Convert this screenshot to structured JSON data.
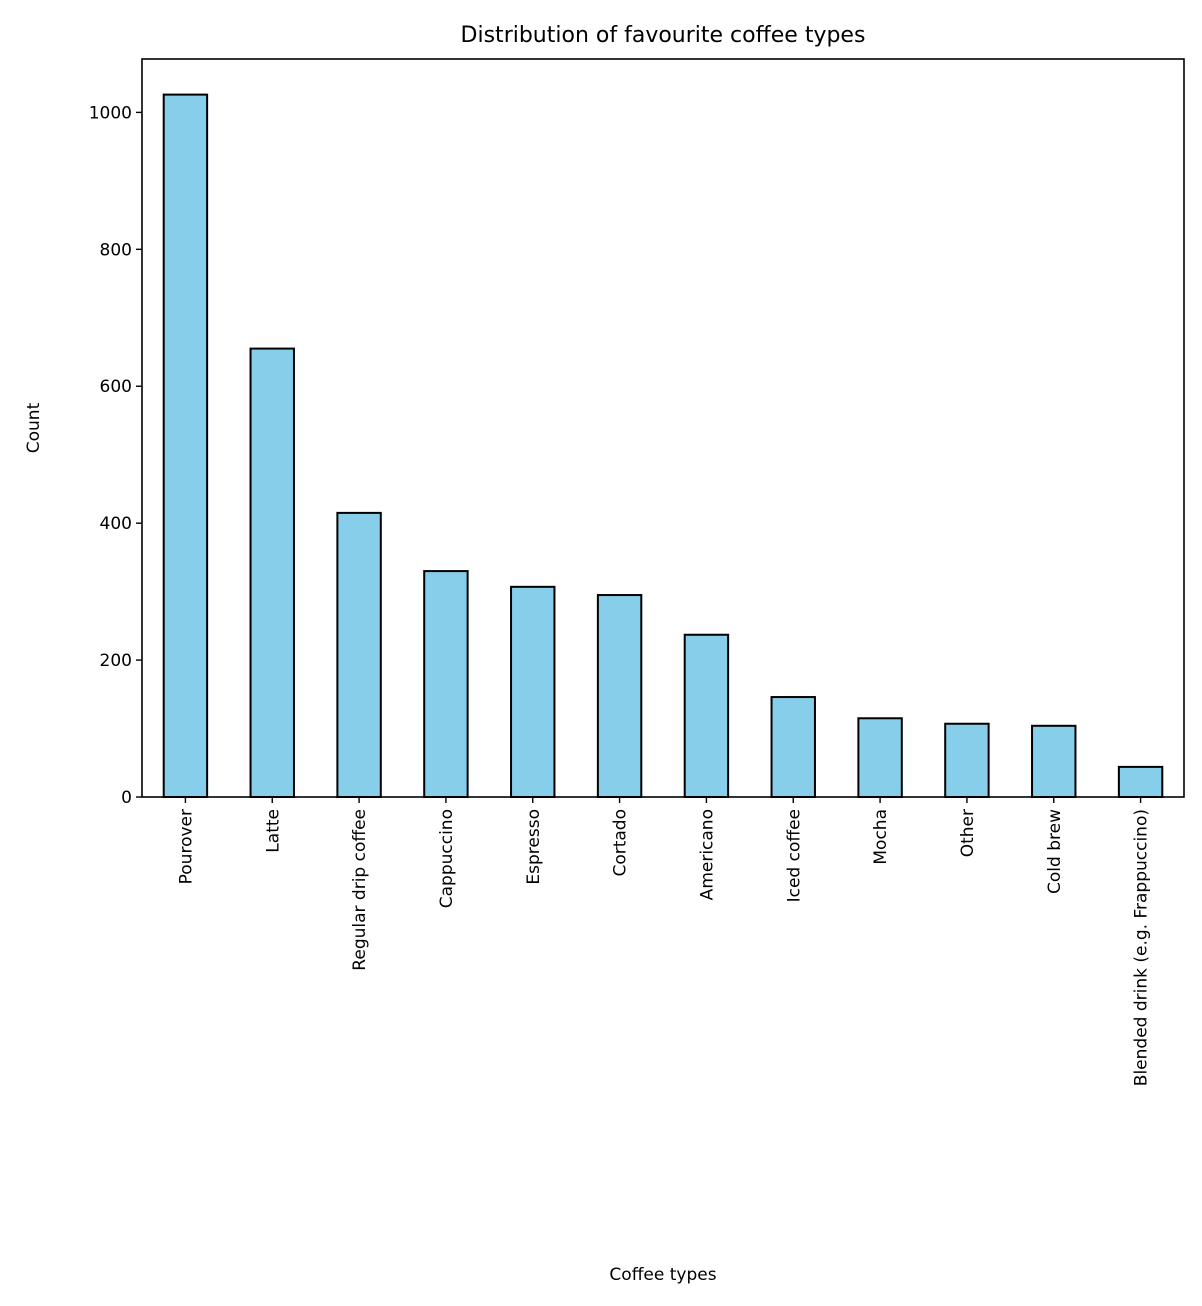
{
  "chart_data": {
    "type": "bar",
    "title": "Distribution of favourite coffee types",
    "xlabel": "Coffee types",
    "ylabel": "Count",
    "categories": [
      "Pourover",
      "Latte",
      "Regular drip coffee",
      "Cappuccino",
      "Espresso",
      "Cortado",
      "Americano",
      "Iced coffee",
      "Mocha",
      "Other",
      "Cold brew",
      "Blended drink (e.g. Frappuccino)"
    ],
    "values": [
      1026,
      655,
      415,
      330,
      307,
      295,
      237,
      146,
      115,
      107,
      104,
      44
    ],
    "ylim": [
      0,
      1078
    ],
    "yticks": [
      0,
      200,
      400,
      600,
      800,
      1000
    ],
    "grid": false,
    "legend": false,
    "colors": {
      "bar": "#87CEEB",
      "edge": "#000000"
    }
  }
}
